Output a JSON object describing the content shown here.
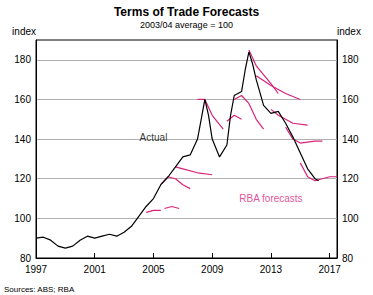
{
  "chart_data": {
    "type": "line",
    "title": "Terms of Trade Forecasts",
    "subtitle": "2003/04 average = 100",
    "ylabel": "index",
    "y2label": "index",
    "source": "Sources: ABS; RBA",
    "xlim": [
      1997,
      2017.5
    ],
    "xticks": [
      1997,
      2001,
      2005,
      2009,
      2013,
      2017
    ],
    "ylim": [
      80,
      190
    ],
    "yticks": [
      80,
      100,
      120,
      140,
      160,
      180
    ],
    "y2lim": [
      80,
      190
    ],
    "y2ticks": [
      80,
      100,
      120,
      140,
      160,
      180
    ],
    "grid": true,
    "annotations": [
      {
        "text": "Actual",
        "x": 2005,
        "y": 141,
        "color": "#000000"
      },
      {
        "text": "RBA forecasts",
        "x": 2013,
        "y": 110,
        "color": "#d9237b"
      }
    ],
    "series": [
      {
        "color": "#000000",
        "x": [
          1997,
          1997.5,
          1998,
          1998.5,
          1999,
          1999.5,
          2000,
          2000.5,
          2001,
          2001.5,
          2002,
          2002.5,
          2003,
          2003.5,
          2004,
          2004.5,
          2005,
          2005.5,
          2006,
          2006.5,
          2007,
          2007.5,
          2008,
          2008.25,
          2008.5,
          2008.75,
          2009,
          2009.5,
          2010,
          2010.25,
          2010.5,
          2011,
          2011.25,
          2011.5,
          2011.75,
          2012,
          2012.5,
          2013,
          2013.5,
          2014,
          2014.5,
          2015,
          2015.5,
          2016,
          2016.25
        ],
        "values": [
          90,
          90.5,
          89,
          86,
          85,
          86,
          89,
          91,
          90,
          91,
          92,
          91,
          93,
          96,
          101,
          106,
          110,
          117,
          121,
          126,
          131,
          132,
          140,
          150,
          160,
          152,
          140,
          131,
          137,
          152,
          162,
          164,
          175,
          184,
          178,
          170,
          157,
          153,
          154,
          148,
          141,
          133,
          125,
          120,
          119
        ]
      },
      {
        "color": "#d9237b",
        "x": [
          2004.5,
          2005,
          2005.5
        ],
        "values": [
          103,
          104,
          104
        ]
      },
      {
        "color": "#d9237b",
        "x": [
          2005.75,
          2006.25,
          2006.75
        ],
        "values": [
          105,
          106,
          105
        ]
      },
      {
        "color": "#d9237b",
        "x": [
          2005.5,
          2006,
          2006.5,
          2007,
          2007.5
        ],
        "values": [
          117,
          121,
          120,
          117,
          115
        ]
      },
      {
        "color": "#d9237b",
        "x": [
          2006.5,
          2007,
          2008,
          2009
        ],
        "values": [
          126,
          125,
          123,
          122
        ]
      },
      {
        "color": "#d9237b",
        "x": [
          2008,
          2008.5,
          2009,
          2009.75
        ],
        "values": [
          160,
          160,
          152,
          145
        ]
      },
      {
        "color": "#d9237b",
        "x": [
          2010,
          2010.5,
          2011
        ],
        "values": [
          149,
          152,
          150
        ]
      },
      {
        "color": "#d9237b",
        "x": [
          2010.5,
          2011,
          2011.5,
          2012,
          2012.5
        ],
        "values": [
          160,
          162,
          158,
          150,
          145
        ]
      },
      {
        "color": "#d9237b",
        "x": [
          2011.5,
          2012,
          2013,
          2013.5
        ],
        "values": [
          185,
          177,
          168,
          163
        ]
      },
      {
        "color": "#d9237b",
        "x": [
          2012,
          2013,
          2014,
          2015
        ],
        "values": [
          172,
          167,
          163,
          160
        ]
      },
      {
        "color": "#d9237b",
        "x": [
          2013,
          2013.5,
          2014.5,
          2015.5
        ],
        "values": [
          155,
          152,
          148,
          147
        ]
      },
      {
        "color": "#d9237b",
        "x": [
          2014,
          2014.5,
          2015,
          2016,
          2016.5
        ],
        "values": [
          146,
          140,
          138,
          139,
          139
        ]
      },
      {
        "color": "#d9237b",
        "x": [
          2015,
          2015.5,
          2016,
          2017,
          2017.5
        ],
        "values": [
          128,
          121,
          119,
          121,
          121
        ]
      }
    ]
  }
}
